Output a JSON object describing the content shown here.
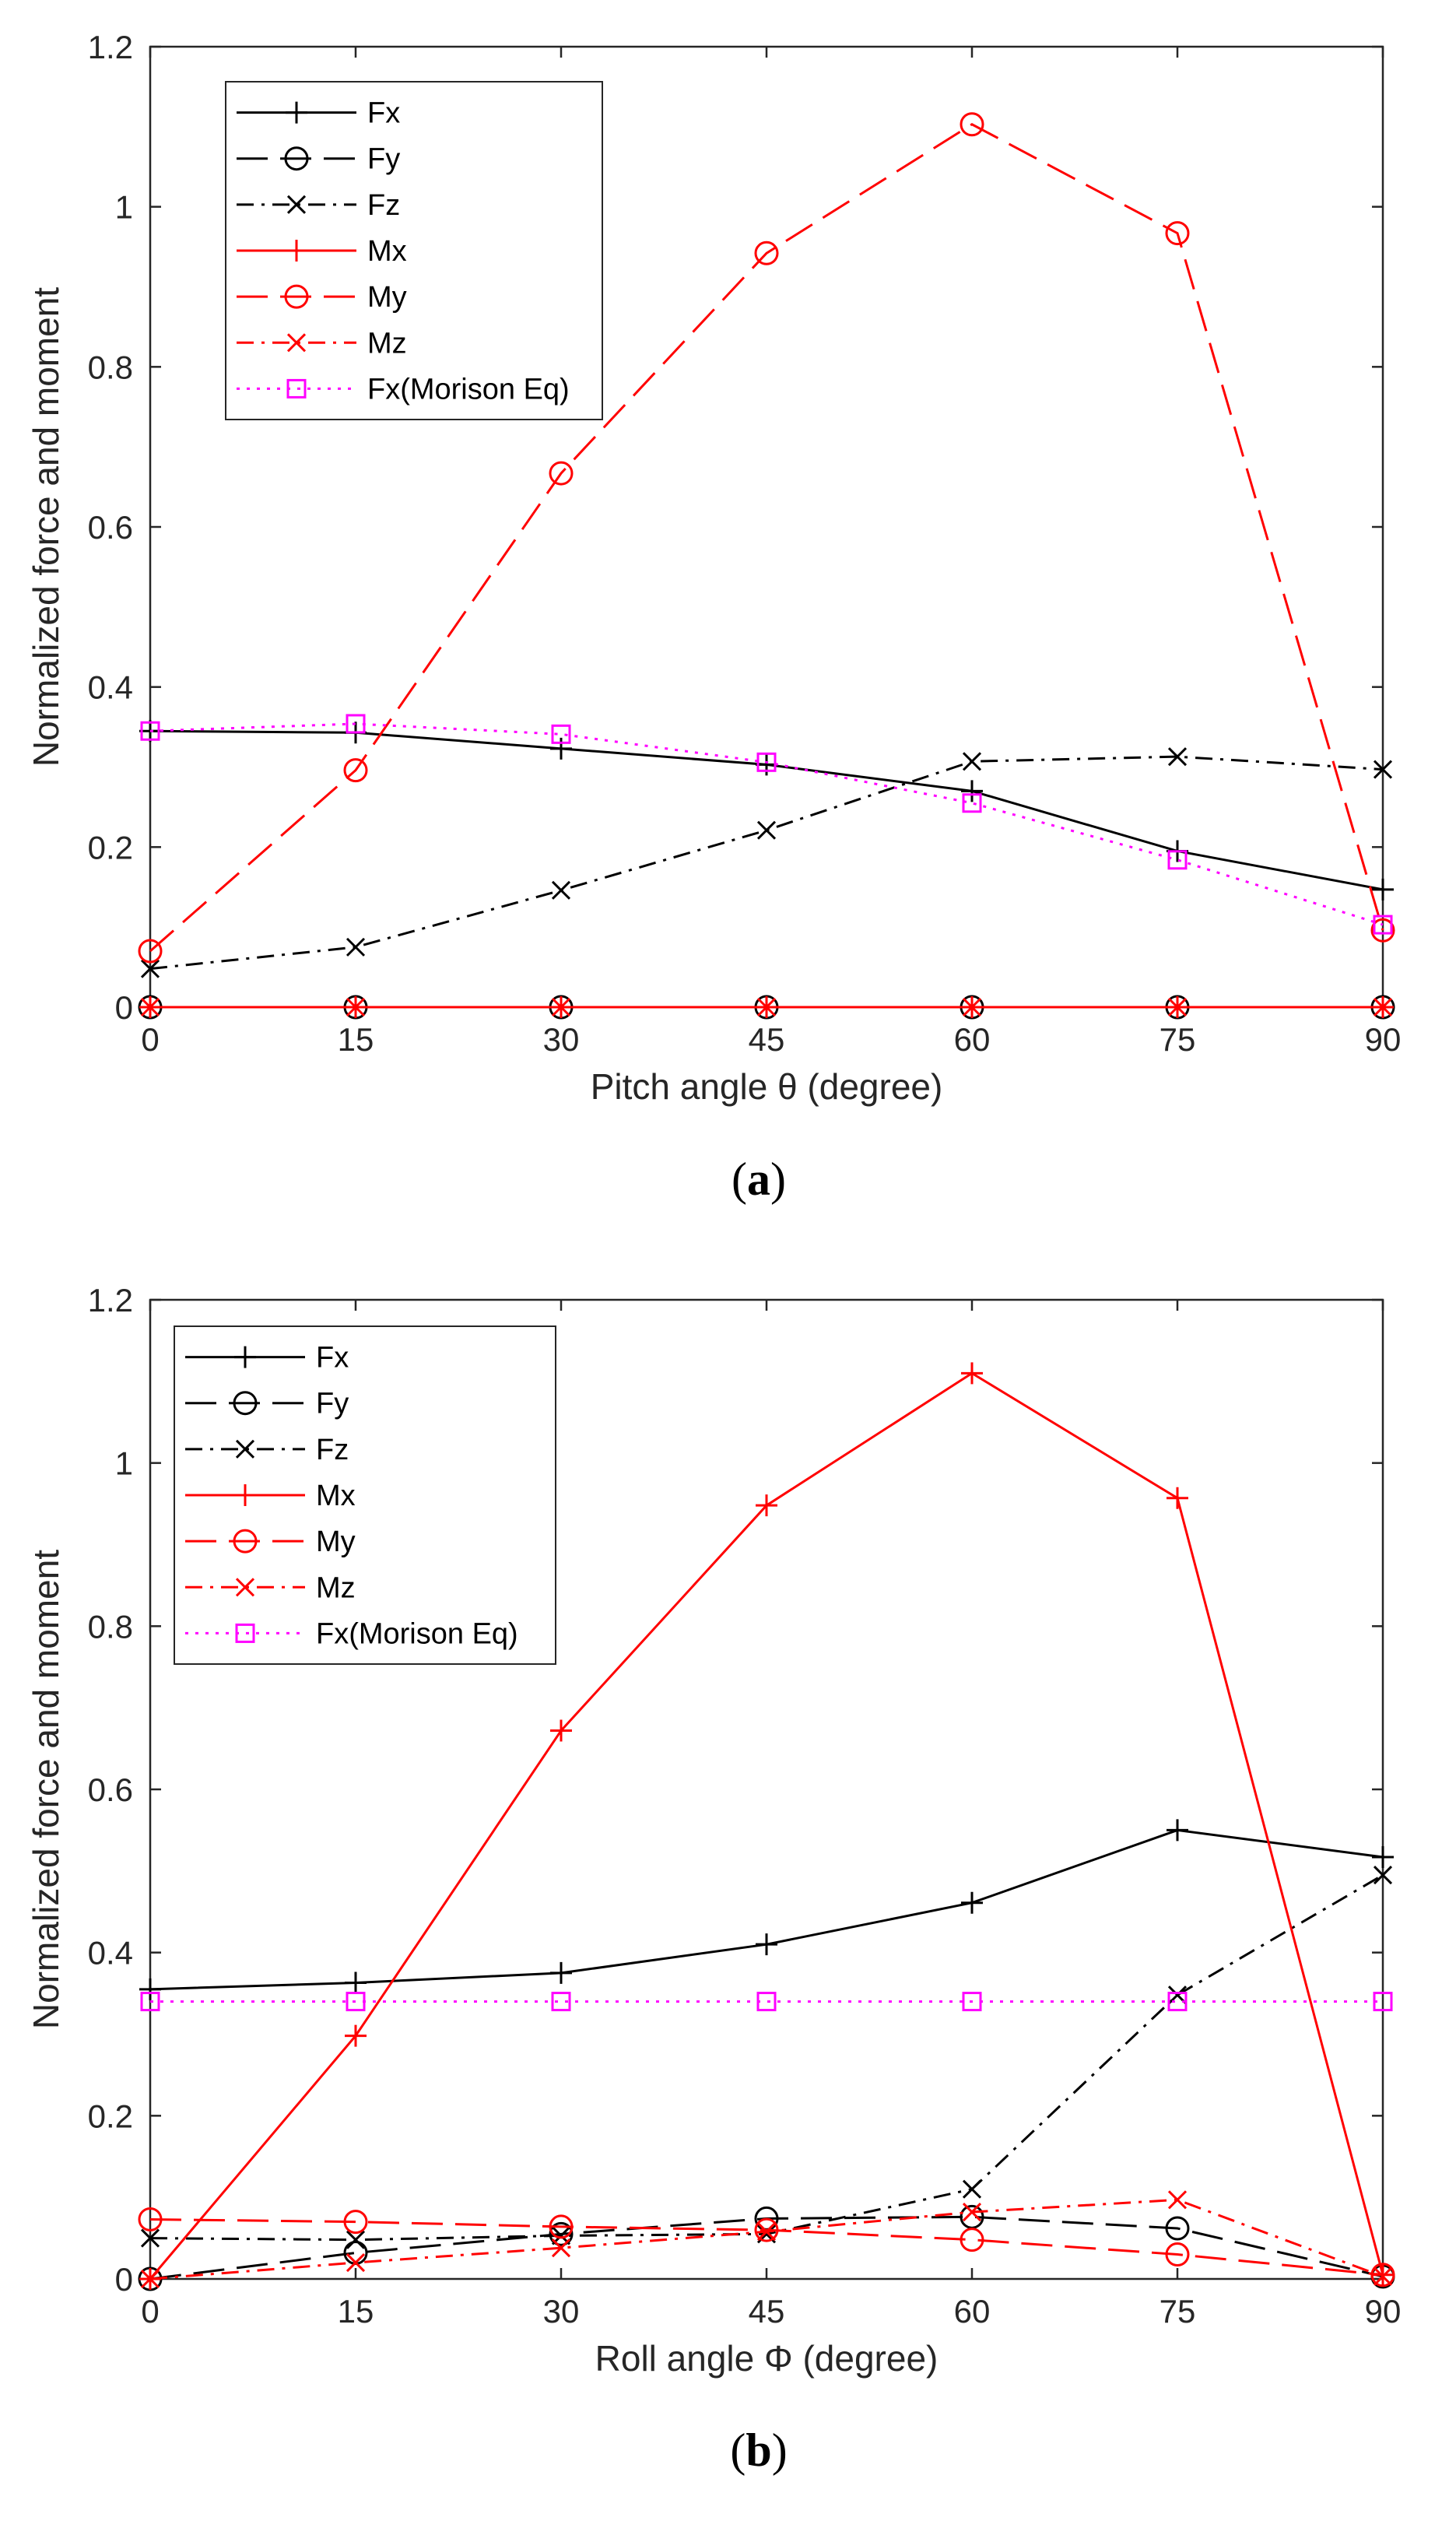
{
  "chart_data": [
    {
      "type": "line",
      "caption_letter": "a",
      "caption_open": "(",
      "caption_close": ")",
      "xlabel": "Pitch angle θ (degree)",
      "ylabel": "Normalized force and moment",
      "x": [
        0,
        15,
        30,
        45,
        60,
        75,
        90
      ],
      "xlim": [
        0,
        90
      ],
      "ylim": [
        0,
        1.2
      ],
      "xticks": [
        "0",
        "15",
        "30",
        "45",
        "60",
        "75",
        "90"
      ],
      "yticks": [
        "0",
        "0.2",
        "0.4",
        "0.6",
        "0.8",
        "1",
        "1.2"
      ],
      "legend_position": "top-left",
      "series": [
        {
          "name": "Fx",
          "color": "#000000",
          "dash": "solid",
          "marker": "plus",
          "values": [
            0.345,
            0.343,
            0.323,
            0.303,
            0.27,
            0.195,
            0.147
          ]
        },
        {
          "name": "Fy",
          "color": "#000000",
          "dash": "dashed",
          "marker": "circle",
          "values": [
            0.0,
            0.0,
            0.0,
            0.0,
            0.0,
            0.0,
            0.0
          ]
        },
        {
          "name": "Fz",
          "color": "#000000",
          "dash": "dashdot",
          "marker": "x",
          "values": [
            0.048,
            0.075,
            0.146,
            0.221,
            0.307,
            0.313,
            0.297
          ]
        },
        {
          "name": "Mx",
          "color": "#ff0000",
          "dash": "solid",
          "marker": "plus",
          "values": [
            0.0,
            0.0,
            0.0,
            0.0,
            0.0,
            0.0,
            0.0
          ]
        },
        {
          "name": "My",
          "color": "#ff0000",
          "dash": "dashed",
          "marker": "circle",
          "values": [
            0.07,
            0.296,
            0.667,
            0.942,
            1.103,
            0.967,
            0.096
          ]
        },
        {
          "name": "Mz",
          "color": "#ff0000",
          "dash": "dashdot",
          "marker": "x",
          "values": [
            0.0,
            0.0,
            0.0,
            0.0,
            0.0,
            0.0,
            0.0
          ]
        },
        {
          "name": "Fx(Morison Eq)",
          "color": "#ff00ff",
          "dash": "dotted",
          "marker": "square",
          "values": [
            0.345,
            0.354,
            0.341,
            0.306,
            0.255,
            0.184,
            0.103
          ]
        }
      ]
    },
    {
      "type": "line",
      "caption_letter": "b",
      "caption_open": "(",
      "caption_close": ")",
      "xlabel": "Roll angle Φ (degree)",
      "ylabel": "Normalized force and moment",
      "x": [
        0,
        15,
        30,
        45,
        60,
        75,
        90
      ],
      "xlim": [
        0,
        90
      ],
      "ylim": [
        0,
        1.2
      ],
      "xticks": [
        "0",
        "15",
        "30",
        "45",
        "60",
        "75",
        "90"
      ],
      "yticks": [
        "0",
        "0.2",
        "0.4",
        "0.6",
        "0.8",
        "1",
        "1.2"
      ],
      "legend_position": "top-left",
      "series": [
        {
          "name": "Fx",
          "color": "#000000",
          "dash": "solid",
          "marker": "plus",
          "values": [
            0.355,
            0.363,
            0.375,
            0.41,
            0.461,
            0.55,
            0.517
          ]
        },
        {
          "name": "Fy",
          "color": "#000000",
          "dash": "dashed",
          "marker": "circle",
          "values": [
            0.0,
            0.032,
            0.055,
            0.074,
            0.076,
            0.062,
            0.003
          ]
        },
        {
          "name": "Fz",
          "color": "#000000",
          "dash": "dashdot",
          "marker": "x",
          "values": [
            0.05,
            0.048,
            0.053,
            0.055,
            0.11,
            0.348,
            0.495
          ]
        },
        {
          "name": "Mx",
          "color": "#ff0000",
          "dash": "solid",
          "marker": "plus",
          "values": [
            0.0,
            0.298,
            0.672,
            0.948,
            1.11,
            0.957,
            0.005
          ]
        },
        {
          "name": "My",
          "color": "#ff0000",
          "dash": "dashed",
          "marker": "circle",
          "values": [
            0.073,
            0.07,
            0.064,
            0.06,
            0.048,
            0.03,
            0.005
          ]
        },
        {
          "name": "Mz",
          "color": "#ff0000",
          "dash": "dashdot",
          "marker": "x",
          "values": [
            0.0,
            0.02,
            0.038,
            0.058,
            0.082,
            0.097,
            0.003
          ]
        },
        {
          "name": "Fx(Morison Eq)",
          "color": "#ff00ff",
          "dash": "dotted",
          "marker": "square",
          "values": [
            0.34,
            0.34,
            0.34,
            0.34,
            0.34,
            0.34,
            0.34
          ]
        }
      ]
    }
  ]
}
